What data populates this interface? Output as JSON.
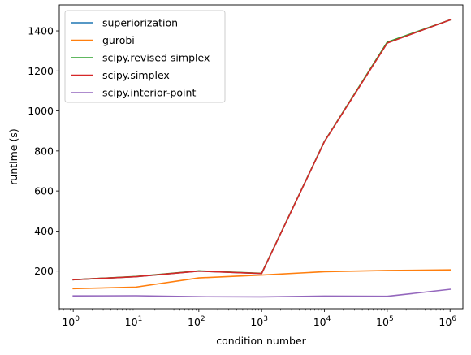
{
  "chart_data": {
    "type": "line",
    "title": "",
    "xlabel": "condition number",
    "ylabel": "runtime (s)",
    "xscale": "log",
    "xlim": [
      0.6,
      1600000.0
    ],
    "ylim": [
      12,
      1530
    ],
    "x": [
      1,
      10,
      100,
      1000,
      10000,
      100000,
      1000000
    ],
    "x_tick_labels": [
      {
        "base": "10",
        "exp": "0"
      },
      {
        "base": "10",
        "exp": "1"
      },
      {
        "base": "10",
        "exp": "2"
      },
      {
        "base": "10",
        "exp": "3"
      },
      {
        "base": "10",
        "exp": "4"
      },
      {
        "base": "10",
        "exp": "5"
      },
      {
        "base": "10",
        "exp": "6"
      }
    ],
    "y_ticks": [
      200,
      400,
      600,
      800,
      1000,
      1200,
      1400
    ],
    "y_tick_labels": [
      "200",
      "400",
      "600",
      "800",
      "1000",
      "1200",
      "1400"
    ],
    "grid": false,
    "legend_position": "top-left",
    "series": [
      {
        "name": "superiorization",
        "color": "#1f77b4",
        "values": [
          157,
          172,
          200,
          188,
          848,
          1340,
          1455
        ]
      },
      {
        "name": "gurobi",
        "color": "#ff7f0e",
        "values": [
          112,
          120,
          166,
          180,
          197,
          203,
          206
        ]
      },
      {
        "name": "scipy.revised simplex",
        "color": "#2ca02c",
        "values": [
          157,
          173,
          201,
          189,
          848,
          1344,
          1455
        ]
      },
      {
        "name": "scipy.simplex",
        "color": "#d62728",
        "values": [
          157,
          172,
          200,
          188,
          847,
          1339,
          1455
        ]
      },
      {
        "name": "scipy.interior-point",
        "color": "#9467bd",
        "values": [
          76,
          77,
          72,
          71,
          75,
          74,
          109
        ]
      }
    ]
  }
}
